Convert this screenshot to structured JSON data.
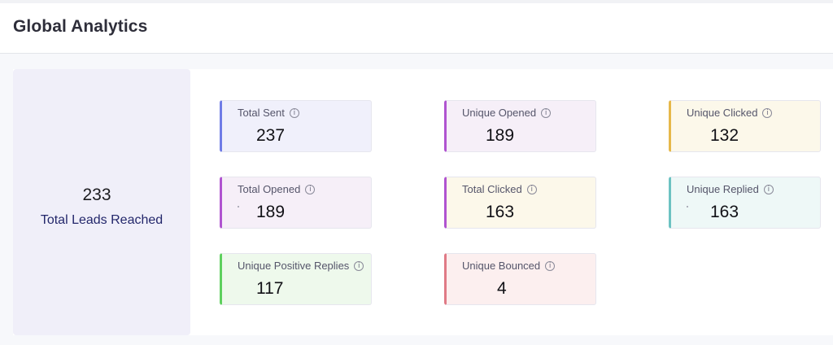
{
  "header": {
    "title": "Global Analytics"
  },
  "leads": {
    "value": "233",
    "label": "Total Leads Reached"
  },
  "stats": [
    {
      "label": "Total Sent",
      "value": "237",
      "accent": "#6f7ce6",
      "bg": "#f0f0fb"
    },
    {
      "label": "Unique Opened",
      "value": "189",
      "accent": "#b054d0",
      "bg": "#f6eff8"
    },
    {
      "label": "Unique Clicked",
      "value": "132",
      "accent": "#e6b84a",
      "bg": "#fcf8ea"
    },
    {
      "label": "Total Opened",
      "value": "189",
      "accent": "#b054d0",
      "bg": "#f6eff8"
    },
    {
      "label": "Total Clicked",
      "value": "163",
      "accent": "#b054d0",
      "bg": "#fcf8ea"
    },
    {
      "label": "Unique Replied",
      "value": "163",
      "accent": "#6cc2c2",
      "bg": "#eef8f7"
    },
    {
      "label": "Unique Positive Replies",
      "value": "117",
      "accent": "#5ed05e",
      "bg": "#eef9ec"
    },
    {
      "label": "Unique Bounced",
      "value": "4",
      "accent": "#e07a86",
      "bg": "#fcefef"
    }
  ],
  "info_icon": {
    "glyph": "i",
    "icon": "info-icon"
  }
}
